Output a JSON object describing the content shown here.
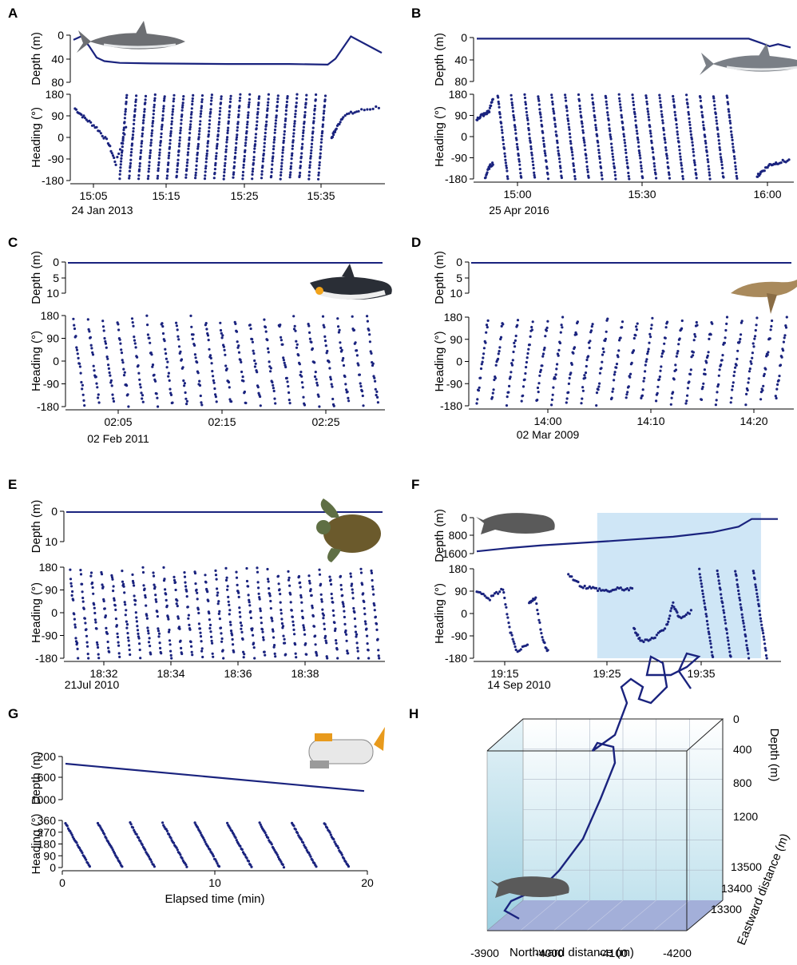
{
  "colors": {
    "series": "#1a237e",
    "axis": "#000000",
    "shade": "#cfe6f6",
    "boxTop": "#d6ecf5",
    "boxFloor": "#8c9bd0"
  },
  "panels": {
    "A": {
      "label": "A",
      "date": "24 Jan 2013",
      "ylabel_depth": "Depth (m)",
      "ylabel_heading": "Heading (°)",
      "depth_ticks": [
        "0",
        "40",
        "80"
      ],
      "heading_ticks": [
        "180",
        "90",
        "0",
        "-90",
        "-180"
      ],
      "x_ticks": [
        "15:05",
        "15:15",
        "15:25",
        "15:35"
      ],
      "animal_icon": "tiger-shark-icon"
    },
    "B": {
      "label": "B",
      "date": "25 Apr 2016",
      "ylabel_depth": "Depth (m)",
      "ylabel_heading": "Heading (°)",
      "depth_ticks": [
        "0",
        "40",
        "80"
      ],
      "heading_ticks": [
        "180",
        "90",
        "0",
        "-90",
        "-180"
      ],
      "x_ticks": [
        "15:00",
        "15:30",
        "16:00"
      ],
      "animal_icon": "whale-shark-icon"
    },
    "C": {
      "label": "C",
      "date": "02 Feb 2011",
      "ylabel_depth": "Depth (m)",
      "ylabel_heading": "Heading (°)",
      "depth_ticks": [
        "0",
        "5",
        "10"
      ],
      "heading_ticks": [
        "180",
        "90",
        "0",
        "-90",
        "-180"
      ],
      "x_ticks": [
        "02:05",
        "02:15",
        "02:25"
      ],
      "animal_icon": "king-penguin-icon"
    },
    "D": {
      "label": "D",
      "date": "02 Mar 2009",
      "ylabel_depth": "Depth (m)",
      "ylabel_heading": "Heading (°)",
      "depth_ticks": [
        "0",
        "5",
        "10"
      ],
      "heading_ticks": [
        "180",
        "90",
        "0",
        "-90",
        "-180"
      ],
      "x_ticks": [
        "14:00",
        "14:10",
        "14:20"
      ],
      "animal_icon": "sea-lion-icon"
    },
    "E": {
      "label": "E",
      "date": "21Jul 2010",
      "ylabel_depth": "Depth (m)",
      "ylabel_heading": "Heading (°)",
      "depth_ticks": [
        "0",
        "10"
      ],
      "heading_ticks": [
        "180",
        "90",
        "0",
        "-90",
        "-180"
      ],
      "x_ticks": [
        "18:32",
        "18:34",
        "18:36",
        "18:38"
      ],
      "animal_icon": "sea-turtle-icon"
    },
    "F": {
      "label": "F",
      "date": "14 Sep 2010",
      "ylabel_depth": "Depth (m)",
      "ylabel_heading": "Heading (°)",
      "depth_ticks": [
        "0",
        "800",
        "1600"
      ],
      "heading_ticks": [
        "180",
        "90",
        "0",
        "-90",
        "-180"
      ],
      "x_ticks": [
        "19:15",
        "19:25",
        "19:35"
      ],
      "animal_icon": "sperm-whale-icon"
    },
    "G": {
      "label": "G",
      "xlabel": "Elapsed time (min)",
      "ylabel_depth": "Depth (m)",
      "ylabel_heading": "Heading (°)",
      "depth_ticks": [
        "200",
        "600",
        "1000"
      ],
      "heading_ticks": [
        "360",
        "270",
        "180",
        "90",
        "0"
      ],
      "x_ticks": [
        "0",
        "10",
        "20"
      ],
      "animal_icon": "submersible-icon"
    },
    "H": {
      "label": "H",
      "xlabel": "Northward distance (m)",
      "zlabel": "Depth (m)",
      "ylabel": "Eastward distance (m)",
      "x_ticks": [
        "-3900",
        "-4000",
        "-4100",
        "-4200"
      ],
      "z_ticks": [
        "0",
        "400",
        "800",
        "1200"
      ],
      "y_ticks": [
        "13500",
        "13400",
        "13300"
      ],
      "animal_icon": "sperm-whale-icon"
    }
  },
  "chart_data": [
    {
      "type": "line",
      "panel": "A",
      "title": "",
      "series": [
        {
          "kind": "depth",
          "ylim": [
            0,
            80
          ],
          "xlim": [
            0,
            40
          ],
          "x": [
            0,
            1,
            2,
            3,
            4,
            6,
            10,
            20,
            28,
            33,
            34,
            36,
            40
          ],
          "y": [
            8,
            2,
            18,
            38,
            44,
            47,
            48,
            49,
            49,
            50,
            40,
            2,
            30
          ]
        },
        {
          "kind": "heading",
          "ylim": [
            -180,
            180
          ],
          "xlim": [
            0,
            40
          ],
          "note_shape": "periodic-wraps",
          "segments": [
            {
              "x": [
                0.2,
                1.5,
                3,
                4.5,
                5.5,
                7
              ],
              "y": [
                120,
                80,
                40,
                -20,
                -110,
                60
              ]
            },
            {
              "x": [
                33.5,
                34,
                35,
                37,
                40
              ],
              "y": [
                0,
                30,
                90,
                110,
                130
              ]
            }
          ],
          "ramps": {
            "start": 6,
            "end": 33,
            "count": 22,
            "from": -170,
            "to": 175
          }
        }
      ]
    },
    {
      "type": "line",
      "panel": "B",
      "title": "",
      "series": [
        {
          "kind": "depth",
          "ylim": [
            0,
            80
          ],
          "xlim": [
            0,
            75
          ],
          "x": [
            0,
            60,
            65,
            68,
            70,
            72,
            75
          ],
          "y": [
            2,
            2,
            2,
            10,
            16,
            12,
            18
          ]
        },
        {
          "kind": "heading",
          "ylim": [
            -180,
            180
          ],
          "xlim": [
            0,
            75
          ],
          "segments": [
            {
              "x": [
                0,
                1,
                2,
                3,
                4
              ],
              "y": [
                70,
                90,
                95,
                110,
                170
              ]
            },
            {
              "x": [
                2,
                3,
                4
              ],
              "y": [
                -175,
                -130,
                -110
              ]
            },
            {
              "x": [
                67,
                68,
                70,
                72,
                75
              ],
              "y": [
                -170,
                -150,
                -120,
                -110,
                -100
              ]
            }
          ],
          "ramps": {
            "start": 5,
            "end": 63,
            "count": 18,
            "from": 175,
            "to": -178,
            "descending": true
          }
        }
      ]
    },
    {
      "type": "scatter",
      "panel": "C",
      "title": "",
      "series": [
        {
          "kind": "depth",
          "ylim": [
            0,
            15
          ],
          "value": 0
        },
        {
          "kind": "heading",
          "ylim": [
            -180,
            180
          ],
          "xlim": [
            0,
            33
          ],
          "ramps": {
            "start": 0.5,
            "end": 33,
            "count": 21,
            "from": 160,
            "to": -170,
            "descending": true
          }
        }
      ]
    },
    {
      "type": "scatter",
      "panel": "D",
      "title": "",
      "series": [
        {
          "kind": "depth",
          "ylim": [
            0,
            15
          ],
          "value": 0
        },
        {
          "kind": "heading",
          "ylim": [
            -180,
            180
          ],
          "xlim": [
            0,
            33
          ],
          "ramps": {
            "start": 0.5,
            "end": 33,
            "count": 21,
            "from": -160,
            "to": 165
          }
        }
      ]
    },
    {
      "type": "scatter",
      "panel": "E",
      "title": "",
      "series": [
        {
          "kind": "depth",
          "ylim": [
            0,
            16
          ],
          "value": 0
        },
        {
          "kind": "heading",
          "ylim": [
            -180,
            180
          ],
          "xlim": [
            0,
            10
          ],
          "ramps": {
            "start": 0.1,
            "end": 10,
            "count": 30,
            "from": 160,
            "to": -175,
            "descending": true
          }
        }
      ]
    },
    {
      "type": "line",
      "panel": "F",
      "title": "",
      "shaded_interval": [
        18.5,
        43
      ],
      "series": [
        {
          "kind": "depth",
          "ylim": [
            0,
            1600
          ],
          "xlim": [
            0,
            46
          ],
          "x": [
            0,
            5,
            10,
            20,
            30,
            36,
            40,
            42,
            46
          ],
          "y": [
            1500,
            1350,
            1230,
            1050,
            850,
            650,
            400,
            60,
            60
          ]
        },
        {
          "kind": "heading",
          "ylim": [
            -180,
            180
          ],
          "xlim": [
            0,
            46
          ],
          "segments": [
            {
              "x": [
                0,
                2,
                4,
                5,
                6,
                8
              ],
              "y": [
                90,
                60,
                100,
                -60,
                -150,
                -130
              ]
            },
            {
              "x": [
                8,
                9,
                10,
                11
              ],
              "y": [
                40,
                60,
                -100,
                -160
              ]
            },
            {
              "x": [
                14,
                16,
                18,
                20,
                22,
                24
              ],
              "y": [
                160,
                110,
                100,
                90,
                100,
                95
              ]
            },
            {
              "x": [
                24,
                25,
                27,
                29,
                30,
                31,
                33
              ],
              "y": [
                -60,
                -110,
                -100,
                -50,
                40,
                -20,
                10
              ]
            }
          ],
          "ramps": {
            "start": 34,
            "end": 45,
            "count": 4,
            "from": 175,
            "to": -178,
            "descending": true
          }
        }
      ]
    },
    {
      "type": "line",
      "panel": "G",
      "title": "",
      "xlabel": "Elapsed time (min)",
      "series": [
        {
          "kind": "depth",
          "ylim": [
            0,
            1200
          ],
          "xlim": [
            0,
            20
          ],
          "x": [
            0,
            20
          ],
          "y": [
            200,
            960
          ]
        },
        {
          "kind": "heading",
          "ylim": [
            0,
            360
          ],
          "xlim": [
            0,
            20
          ],
          "ramps": {
            "start": 0,
            "end": 19.5,
            "count": 9,
            "from": 340,
            "to": 5,
            "descending": true
          }
        }
      ]
    },
    {
      "type": "line",
      "panel": "H",
      "title": "",
      "xlabel": "Northward distance (m)",
      "ylabel": "Eastward distance (m)",
      "zlabel": "Depth (m)",
      "xlim": [
        -3900,
        -4250
      ],
      "ylim": [
        13250,
        13550
      ],
      "zlim": [
        0,
        1300
      ]
    }
  ]
}
